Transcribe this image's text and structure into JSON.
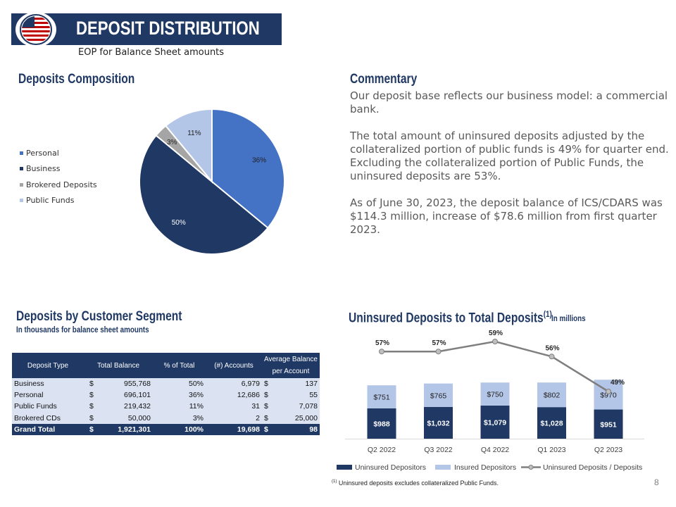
{
  "header": {
    "title": "DEPOSIT DISTRIBUTION",
    "subtitle": "EOP for Balance Sheet amounts"
  },
  "composition": {
    "heading": "Deposits Composition",
    "legend": [
      {
        "label": "Personal",
        "color": "#4472c4"
      },
      {
        "label": "Business",
        "color": "#1f3864"
      },
      {
        "label": "Brokered Deposits",
        "color": "#a5a5a5"
      },
      {
        "label": "Public Funds",
        "color": "#b4c6e7"
      }
    ]
  },
  "commentary": {
    "heading": "Commentary",
    "p1": "Our deposit base reflects our business model: a commercial bank.",
    "p2": "The total amount of uninsured deposits adjusted by the collateralized portion of public funds is 49% for quarter end. Excluding the collateralized portion of Public Funds, the uninsured deposits are 53%.",
    "p3": "As of June 30, 2023, the deposit balance of ICS/CDARS was $114.3 million, increase of $78.6 million from first quarter 2023."
  },
  "segment": {
    "heading": "Deposits by Customer Segment",
    "subheading": "In thousands for balance sheet amounts",
    "columns": [
      "Deposit Type",
      "Total Balance",
      "% of Total",
      "(#) Accounts",
      "Average Balance per Account"
    ],
    "rows": [
      {
        "type": "Business",
        "cur1": "$",
        "balance": "955,768",
        "pct": "50%",
        "accounts": "6,979",
        "cur2": "$",
        "avg": "137"
      },
      {
        "type": "Personal",
        "cur1": "$",
        "balance": "696,101",
        "pct": "36%",
        "accounts": "12,686",
        "cur2": "$",
        "avg": "55"
      },
      {
        "type": "Public Funds",
        "cur1": "$",
        "balance": "219,432",
        "pct": "11%",
        "accounts": "31",
        "cur2": "$",
        "avg": "7,078"
      },
      {
        "type": "Brokered CDs",
        "cur1": "$",
        "balance": "50,000",
        "pct": "3%",
        "accounts": "2",
        "cur2": "$",
        "avg": "25,000"
      }
    ],
    "total": {
      "type": "Grand Total",
      "cur1": "$",
      "balance": "1,921,301",
      "pct": "100%",
      "accounts": "19,698",
      "cur2": "$",
      "avg": "98"
    }
  },
  "uninsured": {
    "heading": "Uninsured Deposits to Total Deposits",
    "heading_sup": "(1)",
    "units": "In millions",
    "footnote_sup": "(1)",
    "footnote": "Uninsured deposits excludes collateralized Public Funds."
  },
  "page_number": "8",
  "chart_data": [
    {
      "type": "pie",
      "title": "Deposits Composition",
      "categories": [
        "Personal",
        "Business",
        "Brokered Deposits",
        "Public Funds"
      ],
      "values": [
        36,
        50,
        3,
        11
      ],
      "labels": [
        "36%",
        "50%",
        "3%",
        "11%"
      ],
      "colors": [
        "#4472c4",
        "#1f3864",
        "#a5a5a5",
        "#b4c6e7"
      ],
      "legend": "left"
    },
    {
      "type": "bar",
      "stacked": true,
      "title": "Uninsured Deposits to Total Deposits",
      "categories": [
        "Q2 2022",
        "Q3 2022",
        "Q4 2022",
        "Q1 2023",
        "Q2 2023"
      ],
      "series": [
        {
          "name": "Uninsured Depositors",
          "values": [
            988,
            1032,
            1079,
            1028,
            951
          ],
          "labels": [
            "$988",
            "$1,032",
            "$1,079",
            "$1,028",
            "$951"
          ],
          "color": "#1f3864"
        },
        {
          "name": "Insured Depositors",
          "values": [
            751,
            765,
            750,
            802,
            970
          ],
          "labels": [
            "$751",
            "$765",
            "$750",
            "$802",
            "$970"
          ],
          "color": "#b4c6e7"
        }
      ],
      "line": {
        "name": "Uninsured Deposits / Deposits",
        "values": [
          57,
          57,
          59,
          56,
          49
        ],
        "labels": [
          "57%",
          "57%",
          "59%",
          "56%",
          "49%"
        ],
        "color": "#7f7f7f"
      },
      "legend": "bottom"
    }
  ]
}
